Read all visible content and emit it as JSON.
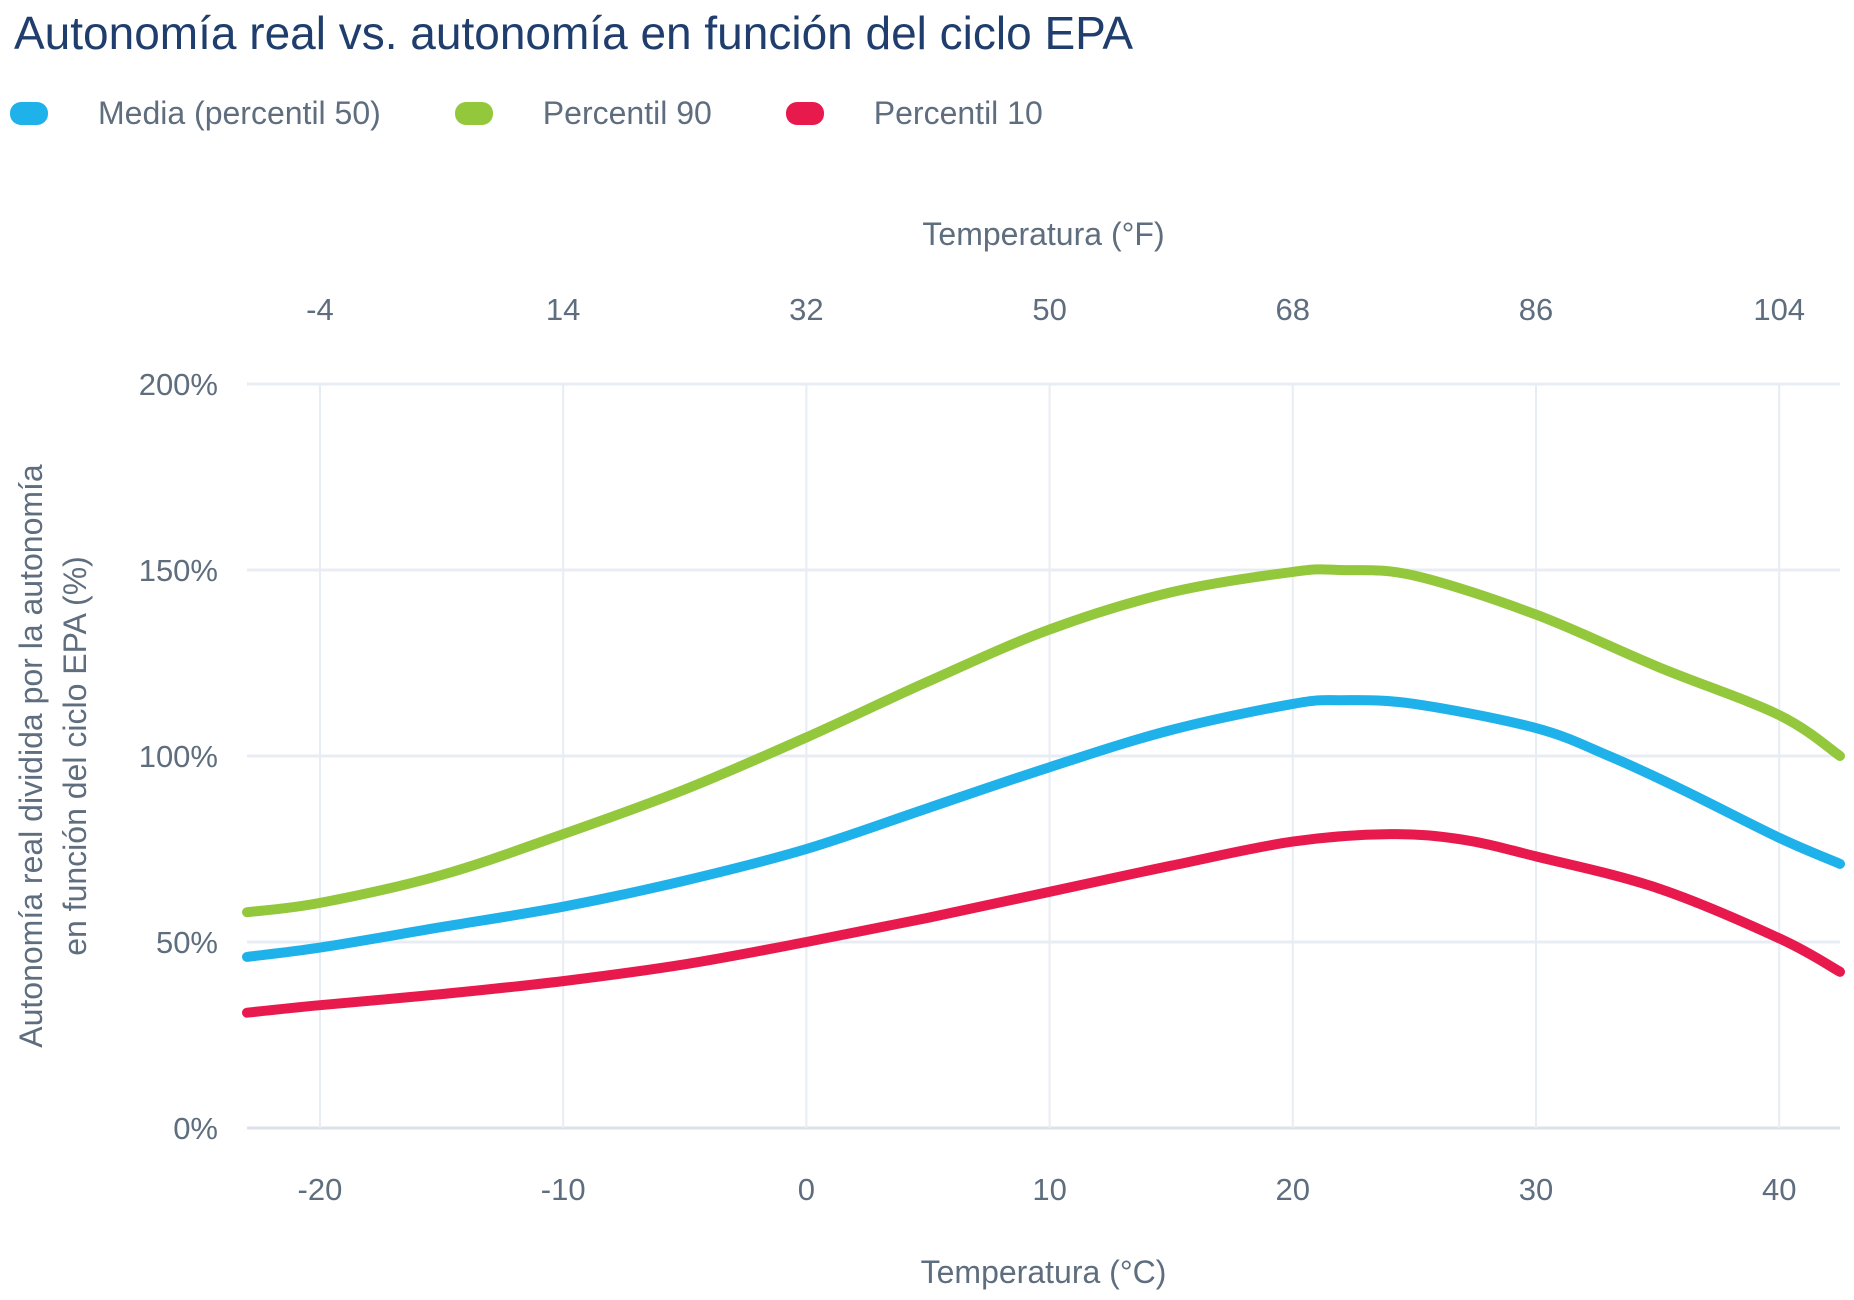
{
  "title": "Autonomía real vs. autonomía en función del ciclo EPA",
  "colors": {
    "title_text": "#1f3e6e",
    "axis_text": "#5f6e7f",
    "grid_line": "#e8ecf3",
    "zero_line": "#dde2ea",
    "background": "#ffffff",
    "series_blue": "#1fb1e9",
    "series_green": "#93c83d",
    "series_red": "#e8194d"
  },
  "legend": [
    {
      "label": "Media (percentil 50)",
      "color": "#1fb1e9"
    },
    {
      "label": "Percentil 90",
      "color": "#93c83d"
    },
    {
      "label": "Percentil 10",
      "color": "#e8194d"
    }
  ],
  "chart_data": {
    "type": "line",
    "title": "Autonomía real vs. autonomía en función del ciclo EPA",
    "grid": true,
    "legend_position": "top-left",
    "x_range": [
      -23,
      42.5
    ],
    "axes": {
      "top": {
        "title": "Temperatura (°F)",
        "tick_positions": [
          -20,
          -10,
          0,
          10,
          20,
          30,
          40
        ],
        "tick_labels": [
          "-4",
          "14",
          "32",
          "50",
          "68",
          "86",
          "104"
        ]
      },
      "bottom": {
        "title": "Temperatura (°C)",
        "tick_positions": [
          -20,
          -10,
          0,
          10,
          20,
          30,
          40
        ],
        "tick_labels": [
          "-20",
          "-10",
          "0",
          "10",
          "20",
          "30",
          "40"
        ]
      },
      "left": {
        "title_lines": [
          "Autonomía real dividida por la autonomía",
          "en función del ciclo EPA (%)"
        ],
        "range": [
          0,
          200
        ],
        "tick_positions": [
          0,
          50,
          100,
          150,
          200
        ],
        "tick_labels": [
          "0%",
          "50%",
          "100%",
          "150%",
          "200%"
        ]
      }
    },
    "series": [
      {
        "name": "Media (percentil 50)",
        "color": "#1fb1e9",
        "points": [
          [
            -23,
            46
          ],
          [
            -20,
            48.5
          ],
          [
            -15,
            54
          ],
          [
            -10,
            59.5
          ],
          [
            -5,
            66.5
          ],
          [
            0,
            75
          ],
          [
            5,
            86
          ],
          [
            10,
            97
          ],
          [
            15,
            107
          ],
          [
            20,
            114
          ],
          [
            22,
            115
          ],
          [
            25,
            114
          ],
          [
            30,
            107.5
          ],
          [
            33,
            100
          ],
          [
            36,
            91
          ],
          [
            40,
            78
          ],
          [
            42.5,
            71
          ]
        ]
      },
      {
        "name": "Percentil 90",
        "color": "#93c83d",
        "points": [
          [
            -23,
            58
          ],
          [
            -20,
            60.5
          ],
          [
            -15,
            68
          ],
          [
            -10,
            79
          ],
          [
            -5,
            91
          ],
          [
            0,
            105
          ],
          [
            5,
            120
          ],
          [
            10,
            134
          ],
          [
            15,
            144
          ],
          [
            20,
            149.5
          ],
          [
            22,
            150
          ],
          [
            25,
            148.5
          ],
          [
            30,
            138
          ],
          [
            35,
            124
          ],
          [
            40,
            111
          ],
          [
            42.5,
            100
          ]
        ]
      },
      {
        "name": "Percentil 10",
        "color": "#e8194d",
        "points": [
          [
            -23,
            31
          ],
          [
            -20,
            33
          ],
          [
            -15,
            36
          ],
          [
            -10,
            39.5
          ],
          [
            -5,
            44
          ],
          [
            0,
            50
          ],
          [
            5,
            56.5
          ],
          [
            10,
            63.5
          ],
          [
            15,
            70.5
          ],
          [
            20,
            77
          ],
          [
            24,
            79
          ],
          [
            27,
            77.5
          ],
          [
            30,
            73
          ],
          [
            35,
            64.5
          ],
          [
            40,
            51
          ],
          [
            42.5,
            42
          ]
        ]
      }
    ]
  }
}
